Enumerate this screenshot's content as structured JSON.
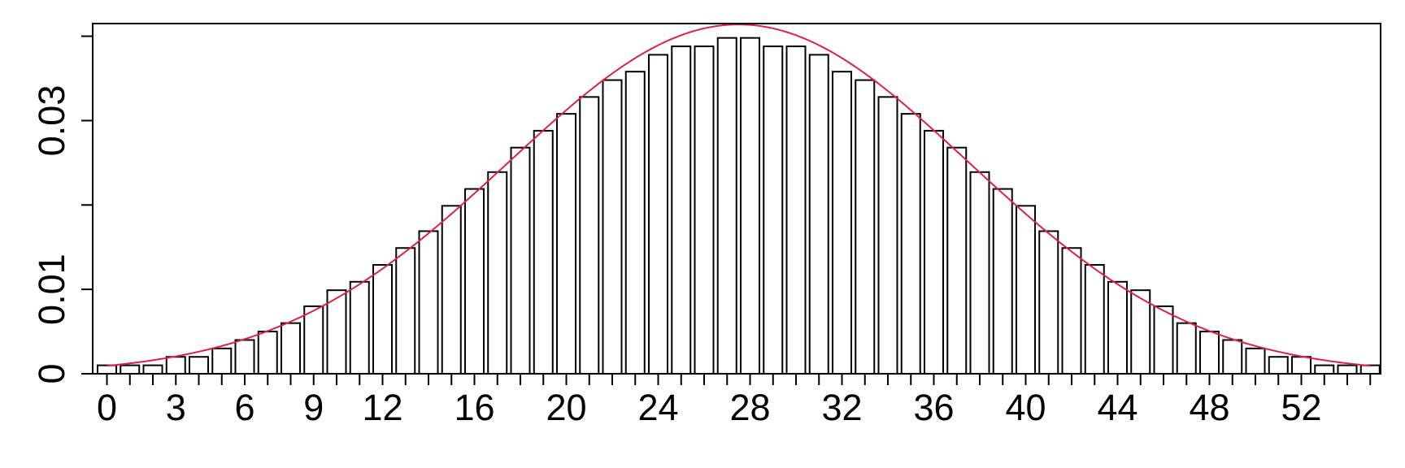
{
  "chart_data": {
    "type": "bar",
    "categories": [
      0,
      1,
      2,
      3,
      4,
      5,
      6,
      7,
      8,
      9,
      10,
      11,
      12,
      13,
      14,
      15,
      16,
      17,
      18,
      19,
      20,
      21,
      22,
      23,
      24,
      25,
      26,
      27,
      28,
      29,
      30,
      31,
      32,
      33,
      34,
      35,
      36,
      37,
      38,
      39,
      40,
      41,
      42,
      43,
      44,
      45,
      46,
      47,
      48,
      49,
      50,
      51,
      52,
      53,
      54,
      55
    ],
    "values": [
      0.001,
      0.001,
      0.001,
      0.002,
      0.002,
      0.003,
      0.004,
      0.005,
      0.006,
      0.008,
      0.0099,
      0.0109,
      0.0129,
      0.0149,
      0.0169,
      0.0199,
      0.0219,
      0.0239,
      0.0268,
      0.0288,
      0.0308,
      0.0328,
      0.0348,
      0.0358,
      0.0378,
      0.0388,
      0.0388,
      0.0398,
      0.0398,
      0.0388,
      0.0388,
      0.0378,
      0.0358,
      0.0348,
      0.0328,
      0.0308,
      0.0288,
      0.0268,
      0.0239,
      0.0219,
      0.0199,
      0.0169,
      0.0149,
      0.0129,
      0.0109,
      0.0099,
      0.008,
      0.006,
      0.005,
      0.004,
      0.003,
      0.002,
      0.002,
      0.001,
      0.001,
      0.001
    ],
    "curve": {
      "mean": 27.5,
      "sd": 10.0,
      "color": "#e0204a"
    },
    "xlim": [
      0,
      55
    ],
    "ylim": [
      0,
      0.0405
    ],
    "x_ticks": [
      0,
      3,
      6,
      9,
      12,
      16,
      20,
      24,
      28,
      32,
      36,
      40,
      44,
      48,
      52
    ],
    "y_ticks": [
      0,
      0.01,
      0.02,
      0.03,
      0.04
    ],
    "y_tick_labels": [
      "0",
      "0.01",
      "",
      "0.03",
      ""
    ],
    "title": "",
    "xlabel": "",
    "ylabel": "",
    "grid": false,
    "legend": "none"
  }
}
